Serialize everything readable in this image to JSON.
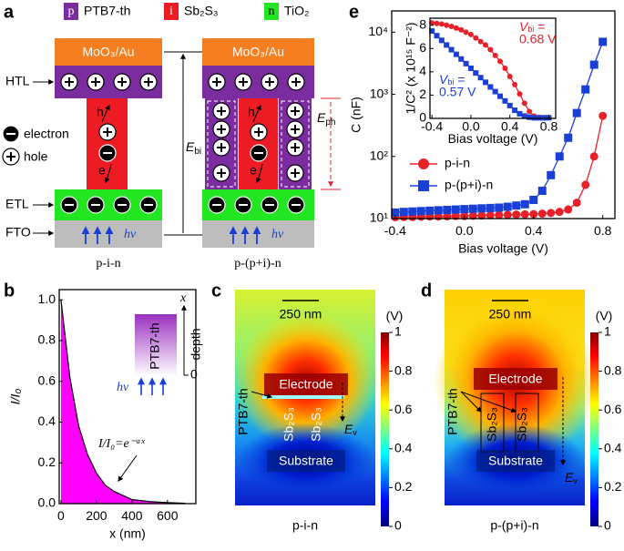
{
  "panel_labels": [
    "a",
    "b",
    "c",
    "d",
    "e"
  ],
  "diagram": {
    "legend": [
      {
        "letter": "p",
        "text": "PTB7-th"
      },
      {
        "letter": "i",
        "text": "Sb₂S₃"
      },
      {
        "letter": "n",
        "text": "TiO₂"
      }
    ],
    "layers": {
      "electrode": "MoO₃/Au",
      "htl": "HTL",
      "etl": "ETL",
      "fto": "FTO",
      "light": "hν"
    },
    "carriers": {
      "electron": "electron",
      "hole": "hole",
      "h": "h",
      "e": "e"
    },
    "devices": [
      "p-i-n",
      "p-(p+i)-n"
    ],
    "ebi": {
      "symbol": "E",
      "sub": "bi"
    },
    "eph": {
      "symbol": "E",
      "sub": "ph"
    }
  },
  "maps": [
    {
      "scale": "250 nm",
      "electrode": "Electrode",
      "substrate": "Substrate",
      "material": "PTB7-th",
      "sb": "Sb₂S₃",
      "field": {
        "symbol": "E",
        "sub": "v"
      },
      "device": "p-i-n",
      "unit": "(V)",
      "clim": [
        0,
        1
      ],
      "cticks": [
        0,
        0.2,
        0.4,
        0.6,
        0.8,
        1
      ]
    },
    {
      "scale": "250 nm",
      "electrode": "Electrode",
      "substrate": "Substrate",
      "material": "PTB7-th",
      "sb": "Sb₂S₃",
      "field": {
        "symbol": "E",
        "sub": "v"
      },
      "device": "p-(p+i)-n",
      "unit": "(V)",
      "clim": [
        0,
        1
      ],
      "cticks": [
        0,
        0.2,
        0.4,
        0.6,
        0.8,
        1
      ]
    }
  ],
  "chart_data": [
    {
      "type": "area",
      "xlabel": "x (nm)",
      "ylabel": "I/I₀",
      "color": "#ff00ff",
      "x": [
        0,
        50,
        100,
        150,
        200,
        250,
        300,
        400,
        500,
        600,
        700
      ],
      "values": [
        1.0,
        0.62,
        0.38,
        0.24,
        0.15,
        0.09,
        0.06,
        0.02,
        0.01,
        0.005,
        0.002
      ],
      "xlim": [
        -10,
        760
      ],
      "xticks": [
        0,
        200,
        400,
        600
      ],
      "ylim": [
        0,
        1.05
      ],
      "yticks": [
        {
          "value": 0,
          "label": "0.0"
        },
        0.2,
        0.4,
        0.6,
        0.8,
        {
          "value": 1,
          "label": "1.0"
        }
      ],
      "annotation": "I/I₀=e⁻ᵅˣ",
      "inset": {
        "material": "PTB7-th",
        "axis": "x",
        "depth": "depth",
        "zero": "0",
        "light": "hν"
      }
    },
    {
      "type": "line",
      "log": true,
      "xlabel": "Bias voltage (V)",
      "ylabel": "C (nF)",
      "legend": "lower left",
      "x": [
        -0.4,
        -0.35,
        -0.3,
        -0.25,
        -0.2,
        -0.15,
        -0.1,
        -0.05,
        0,
        0.05,
        0.1,
        0.15,
        0.2,
        0.25,
        0.3,
        0.35,
        0.4,
        0.45,
        0.5,
        0.55,
        0.6,
        0.65,
        0.7,
        0.75,
        0.8
      ],
      "series": [
        {
          "name": "p-i-n",
          "color": "#e8202a",
          "marker": "circle",
          "values": [
            10.5,
            10.6,
            10.6,
            10.7,
            10.8,
            10.8,
            10.9,
            11,
            11,
            11.1,
            11.2,
            11.3,
            11.4,
            11.5,
            11.6,
            11.7,
            11.8,
            12,
            12.3,
            12.8,
            14,
            18,
            35,
            100,
            450
          ]
        },
        {
          "name": "p-(p+i)-n",
          "color": "#1a3fd6",
          "marker": "square",
          "values": [
            12.5,
            12.8,
            13,
            13.2,
            13.4,
            13.6,
            13.8,
            14,
            14.2,
            14.4,
            14.6,
            14.8,
            15,
            15.5,
            16.2,
            17,
            20,
            28,
            50,
            100,
            200,
            500,
            1200,
            3000,
            7000
          ]
        }
      ],
      "xlim": [
        -0.42,
        0.87
      ],
      "xticks": [
        -0.4,
        {
          "value": 0,
          "label": "0.0"
        },
        0.4,
        0.8
      ],
      "ylim": [
        10,
        22000
      ],
      "yticks": [
        {
          "value": 10,
          "label": "10¹"
        },
        {
          "value": 100,
          "label": "10²"
        },
        {
          "value": 1000,
          "label": "10³"
        },
        {
          "value": 10000,
          "label": "10⁴"
        }
      ]
    },
    {
      "type": "line",
      "xlabel": "Bias voltage (V)",
      "ylabel": "1/C² (x 10¹⁵ F⁻²)",
      "x": [
        -0.4,
        -0.35,
        -0.3,
        -0.25,
        -0.2,
        -0.15,
        -0.1,
        -0.05,
        0,
        0.05,
        0.1,
        0.15,
        0.2,
        0.25,
        0.3,
        0.35,
        0.4,
        0.45,
        0.5,
        0.55,
        0.6,
        0.65,
        0.7,
        0.75,
        0.8
      ],
      "series": [
        {
          "color": "#e8202a",
          "marker": "circle",
          "values": [
            8.2,
            8.15,
            8.1,
            8.0,
            7.9,
            7.75,
            7.6,
            7.4,
            7.2,
            6.9,
            6.6,
            6.3,
            5.9,
            5.4,
            4.9,
            4.3,
            3.6,
            2.9,
            2.1,
            1.3,
            0.6,
            0.2,
            0.1,
            0.05,
            0.05
          ]
        },
        {
          "color": "#1a3fd6",
          "marker": "square",
          "values": [
            7.5,
            7.1,
            6.7,
            6.3,
            5.9,
            5.5,
            5.1,
            4.7,
            4.3,
            3.9,
            3.5,
            3.1,
            2.7,
            2.3,
            1.9,
            1.5,
            1.1,
            0.7,
            0.4,
            0.2,
            0.1,
            0.05,
            0.05,
            0.05,
            0.05
          ]
        }
      ],
      "xlim": [
        -0.42,
        0.87
      ],
      "xticks": [
        -0.4,
        {
          "value": 0,
          "label": "0.0"
        },
        0.4,
        0.8
      ],
      "ylim": [
        0,
        8.6
      ],
      "yticks": [
        0,
        2,
        4,
        6,
        8
      ],
      "annotations": [
        {
          "symbol": "V",
          "sub": "bi",
          "rest": " =",
          "value": "0.68 V",
          "color": "#e8202a"
        },
        {
          "symbol": "V",
          "sub": "bi",
          "rest": " =",
          "value": "0.57 V",
          "color": "#1a3fd6"
        }
      ]
    }
  ]
}
